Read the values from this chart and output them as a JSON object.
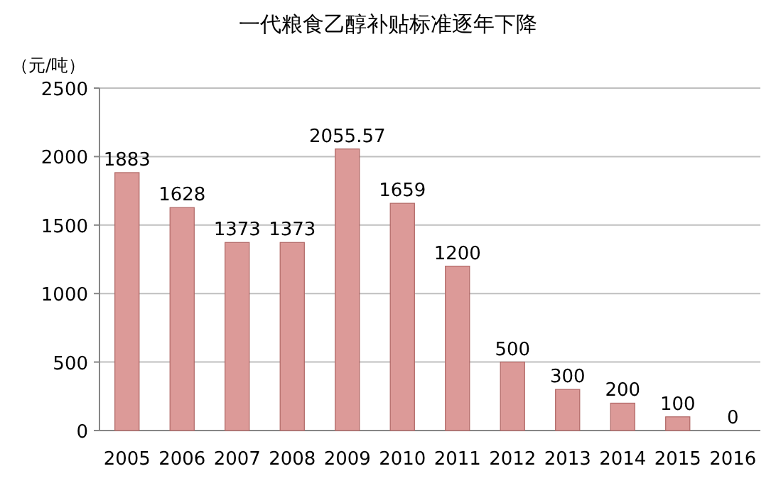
{
  "chart_data": {
    "type": "bar",
    "title": "一代粮食乙醇补贴标准逐年下降",
    "ylabel": "（元/吨）",
    "categories": [
      "2005",
      "2006",
      "2007",
      "2008",
      "2009",
      "2010",
      "2011",
      "2012",
      "2013",
      "2014",
      "2015",
      "2016"
    ],
    "values": [
      1883,
      1628,
      1373,
      1373,
      2055.57,
      1659,
      1200,
      500,
      300,
      200,
      100,
      0
    ],
    "color": "#dc9a98",
    "ylim": [
      0,
      2500
    ],
    "yticks": [
      0,
      500,
      1000,
      1500,
      2000,
      2500
    ],
    "grid": "y",
    "data_labels": true
  }
}
